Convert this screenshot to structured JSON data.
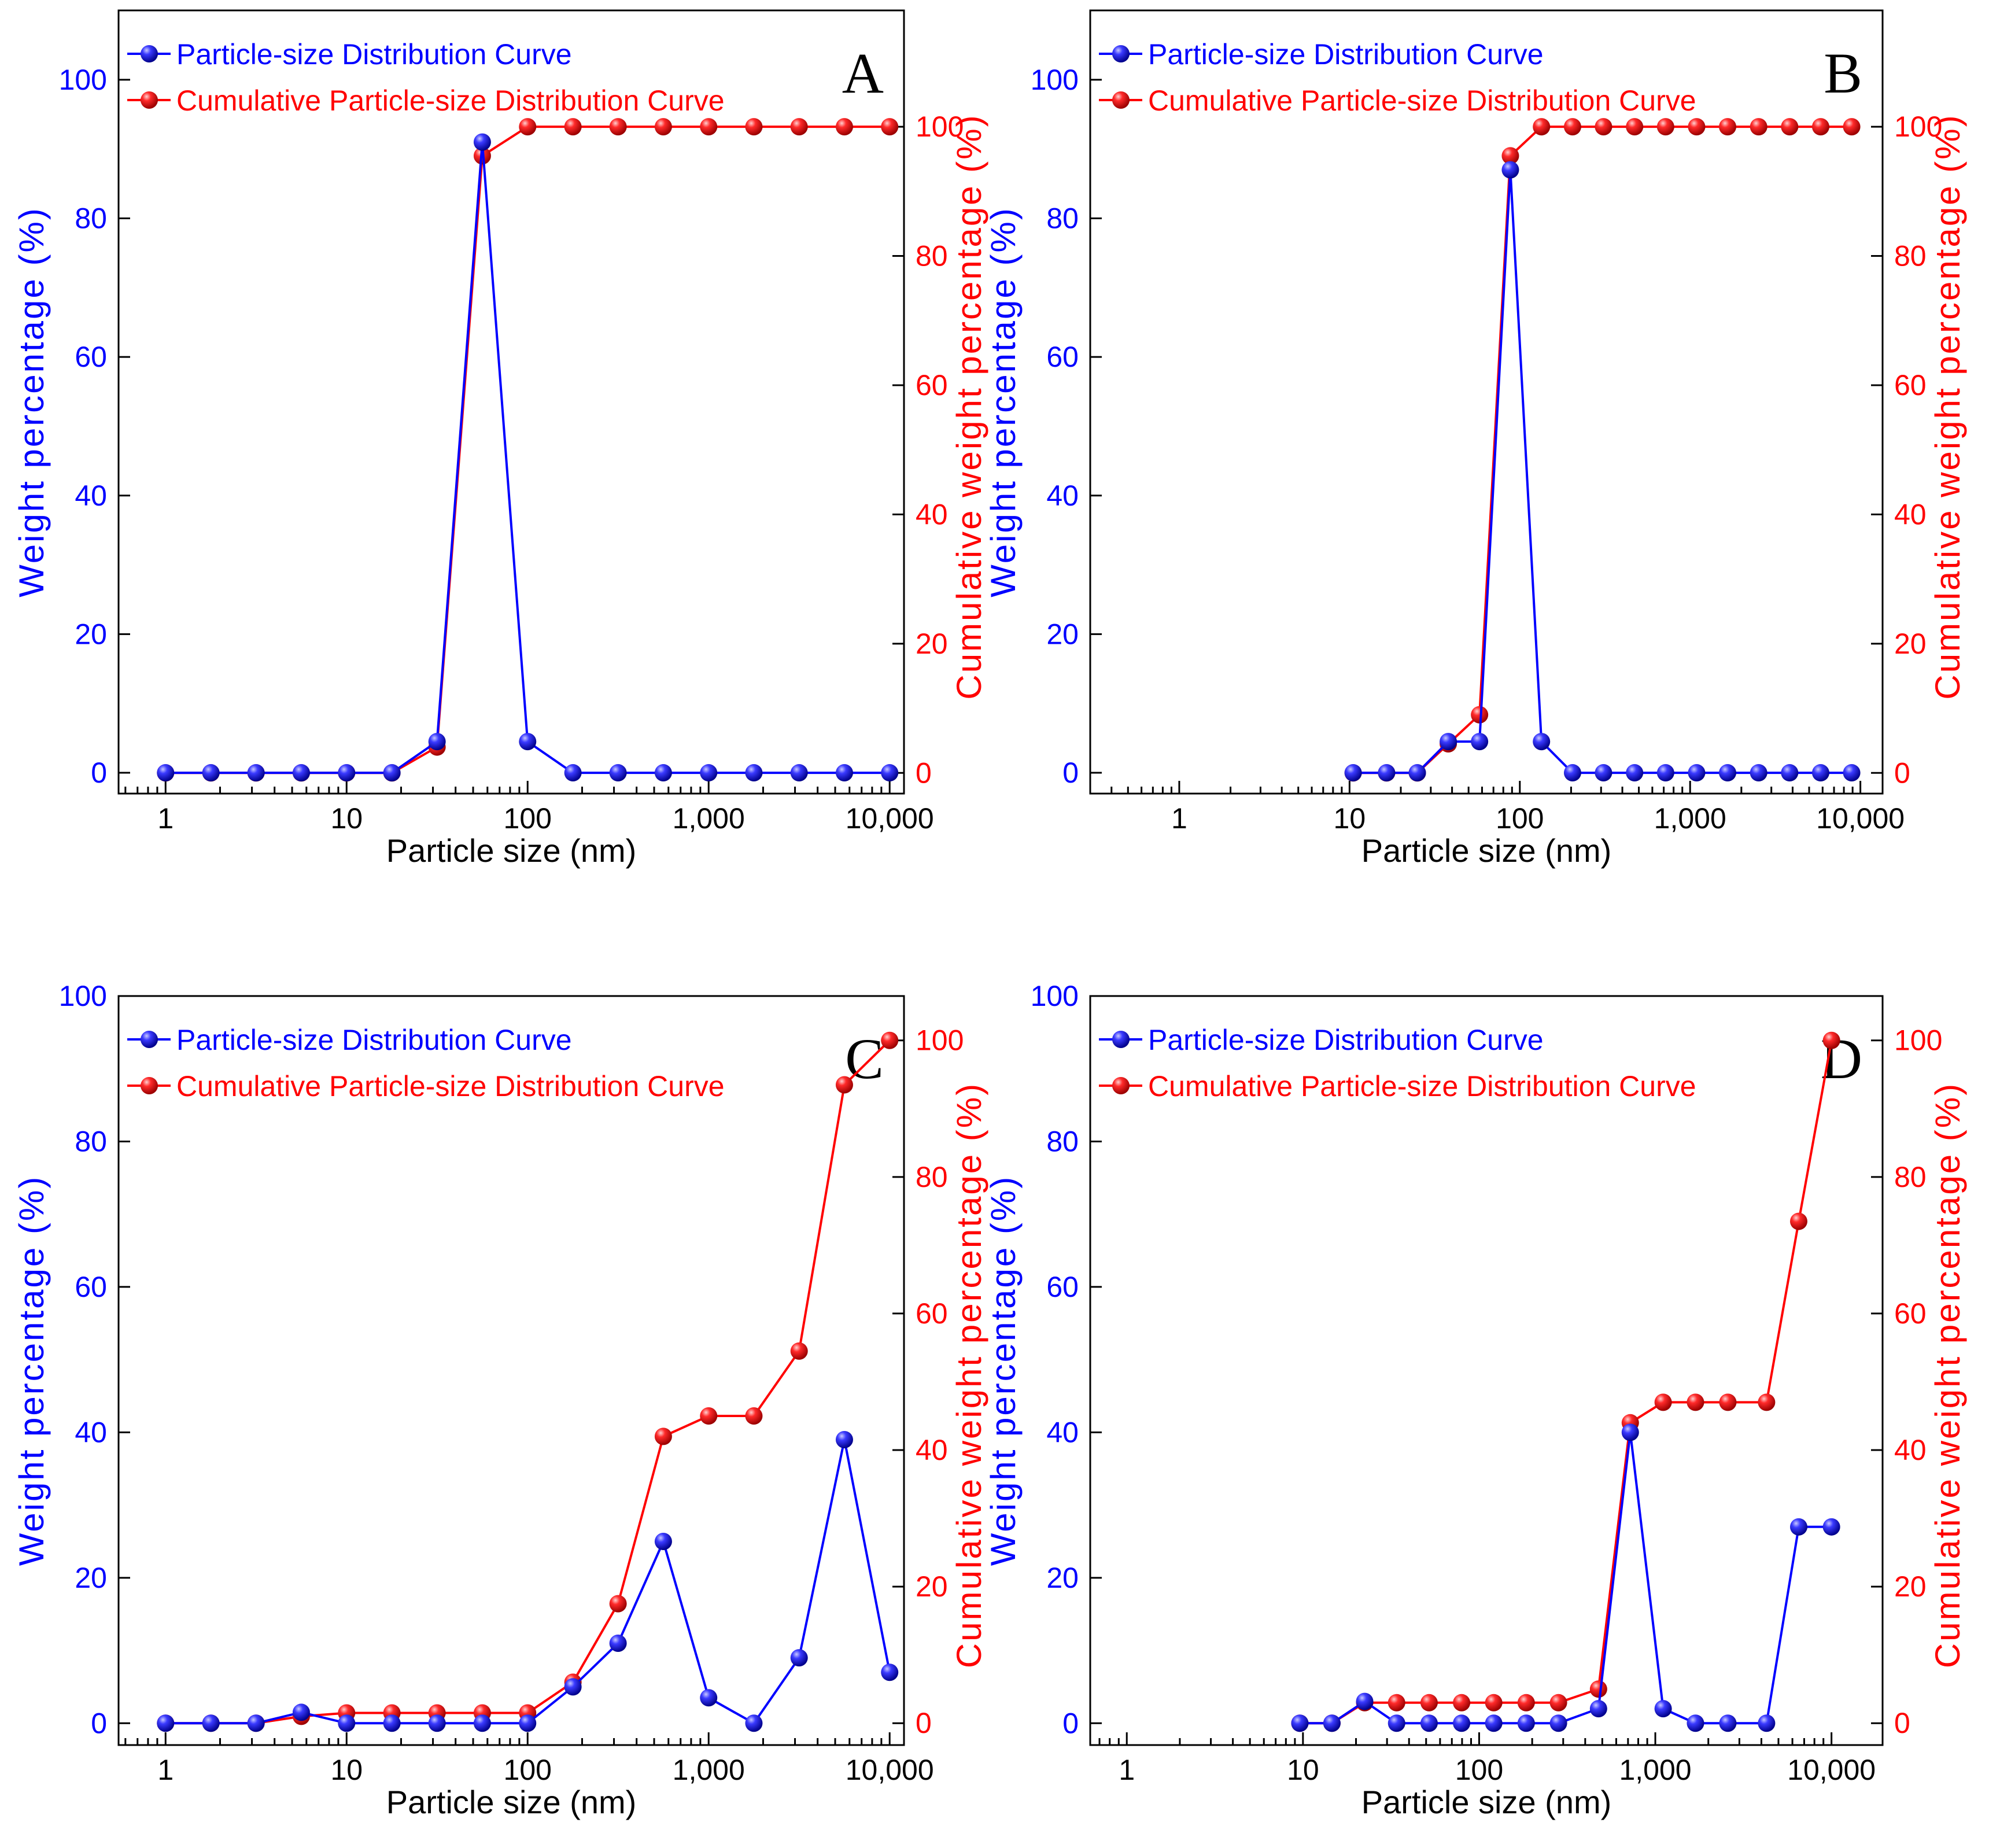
{
  "figure": {
    "colors": {
      "blue": "#0000ff",
      "red": "#ff0000",
      "axis": "#000000"
    },
    "x_ticks": [
      1,
      10,
      100,
      1000,
      10000
    ],
    "x_tick_labels": [
      "1",
      "10",
      "100",
      "1,000",
      "10,000"
    ]
  },
  "chart_data": [
    {
      "panel": "A",
      "type": "line",
      "xscale": "log",
      "xlim": [
        0.55,
        12000
      ],
      "ylim_left": [
        -3,
        110
      ],
      "ylim_right": [
        -3.2,
        118
      ],
      "yticks_left": [
        0,
        20,
        40,
        60,
        80,
        100
      ],
      "yticks_right": [
        0,
        20,
        40,
        60,
        80,
        100
      ],
      "xlabel": "Particle size (nm)",
      "ylabel_left": "Weight percentage (%)",
      "ylabel_right": "Cumulative weight percentage (%)",
      "legend": [
        "Particle-size Distribution Curve",
        "Cumulative Particle-size Distribution Curve"
      ],
      "legend_position": "top-left",
      "series": [
        {
          "name": "Particle-size Distribution Curve",
          "axis": "left",
          "color": "#0000ff",
          "x": [
            1,
            1.78,
            3.16,
            5.62,
            10,
            17.8,
            31.6,
            56.2,
            100,
            178,
            316,
            562,
            1000,
            1778,
            3162,
            5623,
            10000
          ],
          "y": [
            0,
            0,
            0,
            0,
            0,
            0,
            4.5,
            91,
            4.5,
            0,
            0,
            0,
            0,
            0,
            0,
            0,
            0
          ]
        },
        {
          "name": "Cumulative Particle-size Distribution Curve",
          "axis": "right",
          "color": "#ff0000",
          "x": [
            1,
            1.78,
            3.16,
            5.62,
            10,
            17.8,
            31.6,
            56.2,
            100,
            178,
            316,
            562,
            1000,
            1778,
            3162,
            5623,
            10000
          ],
          "y": [
            0,
            0,
            0,
            0,
            0,
            0,
            4,
            95.5,
            100,
            100,
            100,
            100,
            100,
            100,
            100,
            100,
            100
          ]
        }
      ]
    },
    {
      "panel": "B",
      "type": "line",
      "xscale": "log",
      "xlim": [
        0.3,
        13500
      ],
      "ylim_left": [
        -3,
        110
      ],
      "ylim_right": [
        -3.2,
        118
      ],
      "yticks_left": [
        0,
        20,
        40,
        60,
        80,
        100
      ],
      "yticks_right": [
        0,
        20,
        40,
        60,
        80,
        100
      ],
      "xlabel": "Particle size (nm)",
      "ylabel_left": "Weight percentage (%)",
      "ylabel_right": "Cumulative weight percentage (%)",
      "legend": [
        "Particle-size Distribution Curve",
        "Cumulative Particle-size Distribution Curve"
      ],
      "legend_position": "top-left",
      "series": [
        {
          "name": "Particle-size Distribution Curve",
          "axis": "left",
          "color": "#0000ff",
          "x": [
            10.5,
            16.5,
            25,
            38,
            58,
            88,
            134,
            204,
            310,
            472,
            718,
            1092,
            1660,
            2526,
            3842,
            5845,
            8890
          ],
          "y": [
            0,
            0,
            0,
            4.5,
            4.5,
            87,
            4.5,
            0,
            0,
            0,
            0,
            0,
            0,
            0,
            0,
            0,
            0
          ]
        },
        {
          "name": "Cumulative Particle-size Distribution Curve",
          "axis": "right",
          "color": "#ff0000",
          "x": [
            10.5,
            16.5,
            25,
            38,
            58,
            88,
            134,
            204,
            310,
            472,
            718,
            1092,
            1660,
            2526,
            3842,
            5845,
            8890
          ],
          "y": [
            0,
            0,
            0,
            4.5,
            9,
            95.5,
            100,
            100,
            100,
            100,
            100,
            100,
            100,
            100,
            100,
            100,
            100
          ]
        }
      ]
    },
    {
      "panel": "C",
      "type": "line",
      "xscale": "log",
      "xlim": [
        0.55,
        12000
      ],
      "ylim_left": [
        -3,
        100
      ],
      "ylim_right": [
        -3.2,
        106.5
      ],
      "yticks_left": [
        0,
        20,
        40,
        60,
        80,
        100
      ],
      "yticks_right": [
        0,
        20,
        40,
        60,
        80,
        100
      ],
      "xlabel": "Particle size (nm)",
      "ylabel_left": "Weight percentage (%)",
      "ylabel_right": "Cumulative weight percentage (%)",
      "legend": [
        "Particle-size Distribution Curve",
        "Cumulative Particle-size Distribution Curve"
      ],
      "legend_position": "top-left",
      "series": [
        {
          "name": "Particle-size Distribution Curve",
          "axis": "left",
          "color": "#0000ff",
          "x": [
            1,
            1.78,
            3.16,
            5.62,
            10,
            17.8,
            31.6,
            56.2,
            100,
            178,
            316,
            562,
            1000,
            1778,
            3162,
            5623,
            10000
          ],
          "y": [
            0,
            0,
            0,
            1.5,
            0,
            0,
            0,
            0,
            0,
            5,
            11,
            25,
            3.5,
            0,
            9,
            39,
            7
          ]
        },
        {
          "name": "Cumulative Particle-size Distribution Curve",
          "axis": "right",
          "color": "#ff0000",
          "x": [
            1,
            1.78,
            3.16,
            5.62,
            10,
            17.8,
            31.6,
            56.2,
            100,
            178,
            316,
            562,
            1000,
            1778,
            3162,
            5623,
            10000
          ],
          "y": [
            0,
            0,
            0,
            1,
            1.5,
            1.5,
            1.5,
            1.5,
            1.5,
            6,
            17.5,
            42,
            45,
            45,
            54.5,
            93.5,
            100
          ]
        }
      ]
    },
    {
      "panel": "D",
      "type": "line",
      "xscale": "log",
      "xlim": [
        0.62,
        19500
      ],
      "ylim_left": [
        -3,
        100
      ],
      "ylim_right": [
        -3.2,
        106.5
      ],
      "yticks_left": [
        0,
        20,
        40,
        60,
        80,
        100
      ],
      "yticks_right": [
        0,
        20,
        40,
        60,
        80,
        100
      ],
      "xlabel": "Particle size (nm)",
      "ylabel_left": "Weight percentage (%)",
      "ylabel_right": "Cumulative weight percentage (%)",
      "legend": [
        "Particle-size Distribution Curve",
        "Cumulative Particle-size Distribution Curve"
      ],
      "legend_position": "top-left",
      "series": [
        {
          "name": "Particle-size Distribution Curve",
          "axis": "left",
          "color": "#0000ff",
          "x": [
            9.6,
            14.6,
            22.4,
            34,
            52,
            79.5,
            121,
            185,
            282,
            476,
            721,
            1108,
            1690,
            2580,
            4280,
            6515,
            10000
          ],
          "y": [
            0,
            0,
            3,
            0,
            0,
            0,
            0,
            0,
            0,
            2,
            40,
            2,
            0,
            0,
            0,
            27,
            27
          ]
        },
        {
          "name": "Cumulative Particle-size Distribution Curve",
          "axis": "right",
          "color": "#ff0000",
          "x": [
            9.6,
            14.6,
            22.4,
            34,
            52,
            79.5,
            121,
            185,
            282,
            476,
            721,
            1108,
            1690,
            2580,
            4280,
            6515,
            10000
          ],
          "y": [
            0,
            0,
            3,
            3,
            3,
            3,
            3,
            3,
            3,
            5,
            44,
            47,
            47,
            47,
            47,
            73.5,
            100
          ]
        }
      ]
    }
  ]
}
